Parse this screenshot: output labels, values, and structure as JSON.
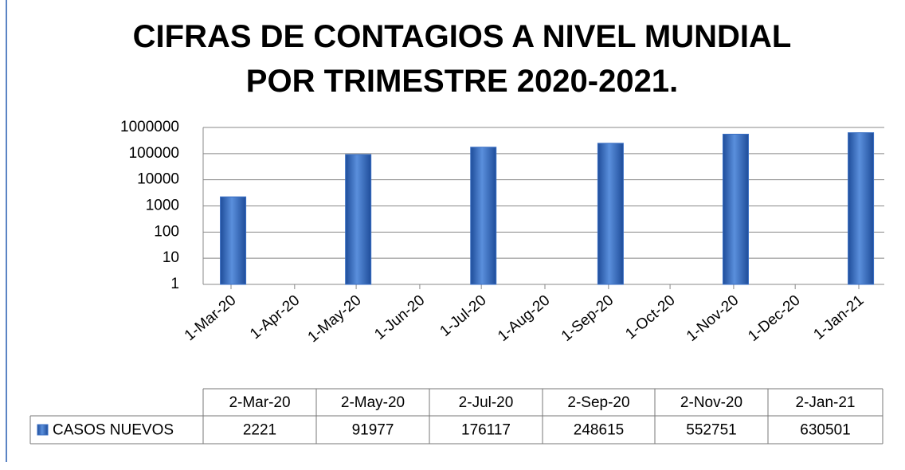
{
  "chart_data": {
    "type": "bar",
    "title": "CIFRAS DE CONTAGIOS A NIVEL MUNDIAL POR TRIMESTRE 2020-2021.",
    "x": [
      "2-Mar-20",
      "2-May-20",
      "2-Jul-20",
      "2-Sep-20",
      "2-Nov-20",
      "2-Jan-21"
    ],
    "series": [
      {
        "name": "CASOS NUEVOS",
        "color": "#3a6fc4",
        "values": [
          2221,
          91977,
          176117,
          248615,
          552751,
          630501
        ]
      }
    ],
    "xlim": [
      "1-Mar-20",
      "1-Jan-21"
    ],
    "xticks": [
      "1-Mar-20",
      "1-Apr-20",
      "1-May-20",
      "1-Jun-20",
      "1-Jul-20",
      "1-Aug-20",
      "1-Sep-20",
      "1-Oct-20",
      "1-Nov-20",
      "1-Dec-20",
      "1-Jan-21"
    ],
    "ylim": [
      1,
      1000000
    ],
    "yticks": [
      1,
      10,
      100,
      1000,
      10000,
      100000,
      1000000
    ],
    "log": true,
    "grid": true
  }
}
